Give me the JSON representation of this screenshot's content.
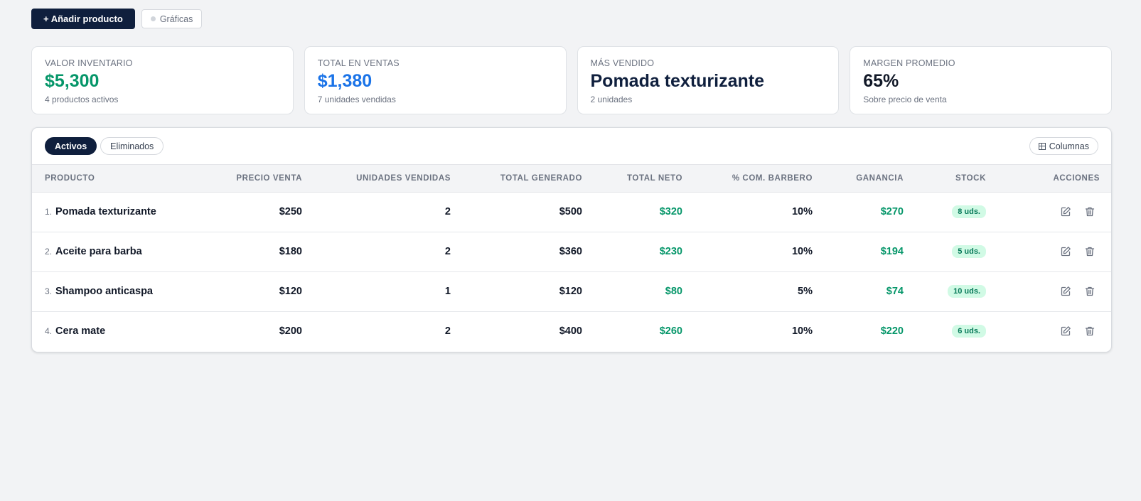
{
  "toolbar": {
    "add_label": "+ Añadir producto",
    "charts_label": "Gráficas"
  },
  "cards": [
    {
      "label": "VALOR INVENTARIO",
      "value": "$5,300",
      "sub": "4 productos activos",
      "color": "#059669"
    },
    {
      "label": "TOTAL EN VENTAS",
      "value": "$1,380",
      "sub": "7 unidades vendidas",
      "color": "#1a73e8"
    },
    {
      "label": "MÁS VENDIDO",
      "value": "Pomada texturizante",
      "sub": "2 unidades",
      "color": "#0f1f3d"
    },
    {
      "label": "MARGEN PROMEDIO",
      "value": "65%",
      "sub": "Sobre precio de venta",
      "color": "#111827"
    }
  ],
  "tabs": [
    {
      "label": "Activos",
      "active": true
    },
    {
      "label": "Eliminados",
      "active": false
    }
  ],
  "columns_button": "Columnas",
  "table": {
    "headers": [
      "PRODUCTO",
      "PRECIO VENTA",
      "UNIDADES VENDIDAS",
      "TOTAL GENERADO",
      "TOTAL NETO",
      "% COM. BARBERO",
      "GANANCIA",
      "STOCK",
      "ACCIONES"
    ],
    "rows": [
      {
        "index": "1.",
        "product": "Pomada texturizante",
        "price": "$250",
        "units": "2",
        "total": "$500",
        "net": "$320",
        "commission": "10%",
        "profit": "$270",
        "stock": "8 uds."
      },
      {
        "index": "2.",
        "product": "Aceite para barba",
        "price": "$180",
        "units": "2",
        "total": "$360",
        "net": "$230",
        "commission": "10%",
        "profit": "$194",
        "stock": "5 uds."
      },
      {
        "index": "3.",
        "product": "Shampoo anticaspa",
        "price": "$120",
        "units": "1",
        "total": "$120",
        "net": "$80",
        "commission": "5%",
        "profit": "$74",
        "stock": "10 uds."
      },
      {
        "index": "4.",
        "product": "Cera mate",
        "price": "$200",
        "units": "2",
        "total": "$400",
        "net": "$260",
        "commission": "10%",
        "profit": "$220",
        "stock": "6 uds."
      }
    ]
  },
  "icons": {
    "edit": "edit-icon",
    "delete": "trash-icon",
    "columns": "grid-icon"
  }
}
